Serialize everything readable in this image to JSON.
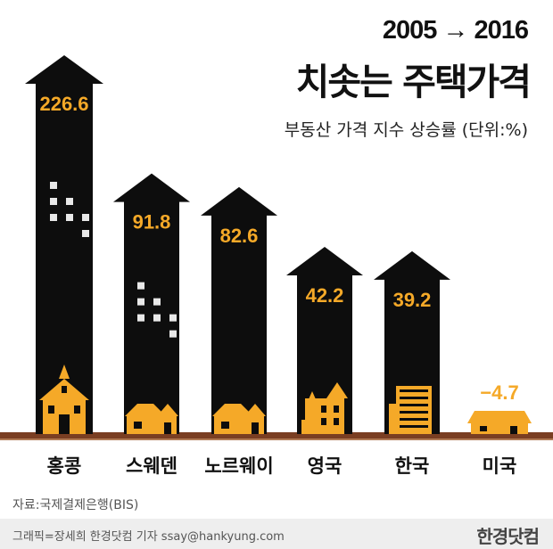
{
  "header": {
    "period": "2005 → 2016",
    "title": "치솟는 주택가격",
    "subtitle": "부동산 가격 지수 상승률 (단위:%)"
  },
  "colors": {
    "bar": "#0d0d0d",
    "accent": "#f5a928",
    "negative_bar": "#f5a928",
    "ground": "#7a3e22",
    "background": "#ffffff"
  },
  "chart_data": {
    "type": "bar",
    "title": "치솟는 주택가격",
    "subtitle": "부동산 가격 지수 상승률 (단위:%)",
    "categories": [
      "홍콩",
      "스웨덴",
      "노르웨이",
      "영국",
      "한국",
      "미국"
    ],
    "values": [
      226.6,
      91.8,
      82.6,
      42.2,
      39.2,
      -4.7
    ],
    "value_labels": [
      "226.6",
      "91.8",
      "82.6",
      "42.2",
      "39.2",
      "−4.7"
    ],
    "icons": [
      "school-house-icon",
      "house-icon",
      "house-icon",
      "victorian-house-icon",
      "apartment-building-icon",
      "ranch-house-icon"
    ],
    "xlabel": "",
    "ylabel": ""
  },
  "source": "자료:국제결제은행(BIS)",
  "footer": {
    "credit": "그래픽=장세희 한경닷컴 기자 ssay@hankyung.com",
    "brand": "한경닷컴"
  }
}
